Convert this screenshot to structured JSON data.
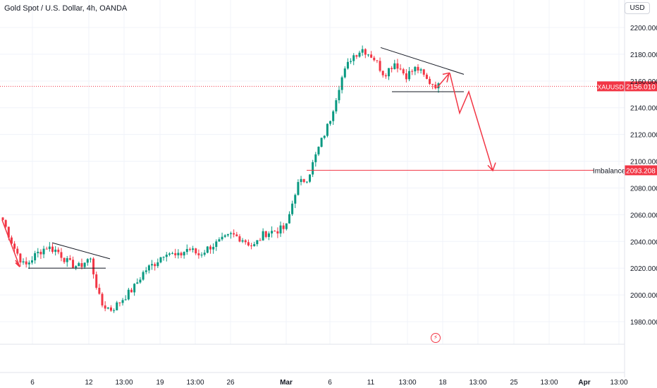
{
  "header": {
    "title": "Gold Spot / U.S. Dollar, 4h, OANDA",
    "currency": "USD"
  },
  "colors": {
    "up": "#089981",
    "down": "#f23645",
    "line": "#131722",
    "price_line": "#f23645",
    "grid": "#f0f3fa",
    "axis_text": "#131722"
  },
  "icons": {
    "flash": "lightning-bolt-icon"
  },
  "chart_data": {
    "type": "candlestick",
    "symbol": "XAUUSD",
    "interval": "4h",
    "ylim": [
      1960,
      2210
    ],
    "y_ticks": [
      "2200.000",
      "2180.000",
      "2160.000",
      "2140.000",
      "2120.000",
      "2100.000",
      "2080.000",
      "2060.000",
      "2040.000",
      "2020.000",
      "2000.000",
      "1980.000"
    ],
    "x_ticks": [
      "6",
      "12",
      "13:00",
      "19",
      "13:00",
      "26",
      "Mar",
      "6",
      "11",
      "13:00",
      "18",
      "13:00",
      "25",
      "13:00",
      "Apr",
      "13:00"
    ],
    "last_price": {
      "label": "XAUUSD",
      "value": "2156.010",
      "y": 2156.01
    },
    "annotations": [
      {
        "label": "Imbalance",
        "value": "2093.208",
        "y": 2093.208
      }
    ],
    "key_closes": [
      2056,
      2036,
      2021,
      2030,
      2036,
      2033,
      2024,
      2021,
      2028,
      1993,
      1989,
      1997,
      2005,
      2018,
      2024,
      2033,
      2028,
      2035,
      2030,
      2036,
      2040,
      2045,
      2042,
      2036,
      2046,
      2048,
      2050,
      2082,
      2088,
      2110,
      2130,
      2160,
      2178,
      2184,
      2178,
      2165,
      2174,
      2164,
      2170,
      2160,
      2156
    ]
  }
}
